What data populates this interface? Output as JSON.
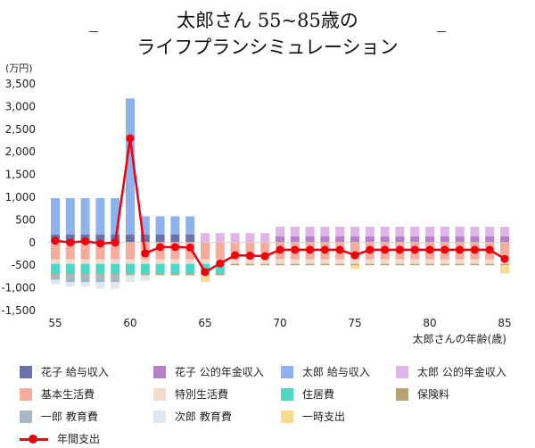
{
  "chart_data": {
    "type": "bar",
    "title_lines": [
      "太郎さん 55~85歳の",
      "ライフプランシミュレーション"
    ],
    "ylabel": "(万円)",
    "xlabel": "太郎さんの年齢(歳)",
    "ylim": [
      -1500,
      3500
    ],
    "yticks": [
      "3,500",
      "3,000",
      "2,500",
      "2,000",
      "1,500",
      "1,000",
      "500",
      "0",
      "-500",
      "-1,000",
      "-1,500"
    ],
    "ytick_values": [
      3500,
      3000,
      2500,
      2000,
      1500,
      1000,
      500,
      0,
      -500,
      -1000,
      -1500
    ],
    "xticks": [
      55,
      60,
      65,
      70,
      75,
      80,
      85
    ],
    "x": [
      55,
      56,
      57,
      58,
      59,
      60,
      61,
      62,
      63,
      64,
      65,
      66,
      67,
      68,
      69,
      70,
      71,
      72,
      73,
      74,
      75,
      76,
      77,
      78,
      79,
      80,
      81,
      82,
      83,
      84,
      85
    ],
    "series": [
      {
        "name": "花子 給与収入",
        "color": "#6b72a8",
        "stack": "income",
        "values": [
          180,
          180,
          180,
          180,
          180,
          180,
          180,
          180,
          180,
          180,
          0,
          0,
          0,
          0,
          0,
          0,
          0,
          0,
          0,
          0,
          0,
          0,
          0,
          0,
          0,
          0,
          0,
          0,
          0,
          0,
          0
        ]
      },
      {
        "name": "花子 公的年金収入",
        "color": "#b77fc8",
        "stack": "income",
        "values": [
          0,
          0,
          0,
          0,
          0,
          0,
          0,
          0,
          0,
          0,
          0,
          0,
          0,
          0,
          0,
          140,
          140,
          140,
          140,
          140,
          140,
          140,
          140,
          140,
          140,
          140,
          140,
          140,
          140,
          140,
          140
        ]
      },
      {
        "name": "太郎 給与収入",
        "color": "#8eb3ec",
        "stack": "income",
        "values": [
          800,
          800,
          800,
          800,
          800,
          3000,
          400,
          400,
          400,
          400,
          0,
          0,
          0,
          0,
          0,
          0,
          0,
          0,
          0,
          0,
          0,
          0,
          0,
          0,
          0,
          0,
          0,
          0,
          0,
          0,
          0
        ]
      },
      {
        "name": "太郎 公的年金収入",
        "color": "#e0b6e9",
        "stack": "income",
        "values": [
          0,
          0,
          0,
          0,
          0,
          0,
          0,
          0,
          0,
          0,
          210,
          210,
          210,
          210,
          210,
          210,
          210,
          210,
          210,
          210,
          210,
          210,
          210,
          210,
          210,
          210,
          210,
          210,
          210,
          210,
          210
        ]
      },
      {
        "name": "基本生活費",
        "color": "#f4ac9c",
        "stack": "expense",
        "values": [
          -370,
          -370,
          -370,
          -370,
          -370,
          -370,
          -370,
          -370,
          -370,
          -370,
          -370,
          -370,
          -370,
          -370,
          -370,
          -370,
          -370,
          -370,
          -370,
          -370,
          -370,
          -370,
          -370,
          -370,
          -370,
          -370,
          -370,
          -370,
          -370,
          -370,
          -370
        ]
      },
      {
        "name": "特別生活費",
        "color": "#f4d9cf",
        "stack": "expense",
        "values": [
          -100,
          -100,
          -100,
          -100,
          -100,
          -100,
          -100,
          -100,
          -100,
          -100,
          -100,
          -100,
          -100,
          -100,
          -100,
          -100,
          -100,
          -100,
          -100,
          -100,
          -100,
          -100,
          -100,
          -100,
          -100,
          -100,
          -100,
          -100,
          -100,
          -100,
          -100
        ]
      },
      {
        "name": "住居費",
        "color": "#4fd6c5",
        "stack": "expense",
        "values": [
          -220,
          -220,
          -220,
          -220,
          -220,
          -220,
          -220,
          -220,
          -220,
          -220,
          -220,
          -220,
          0,
          0,
          0,
          0,
          0,
          0,
          0,
          0,
          0,
          0,
          0,
          0,
          0,
          0,
          0,
          0,
          0,
          0,
          0
        ]
      },
      {
        "name": "保険料",
        "color": "#b7a373",
        "stack": "expense",
        "values": [
          -30,
          -30,
          -30,
          -30,
          -30,
          -30,
          -30,
          -30,
          -30,
          -30,
          -30,
          -30,
          -30,
          -30,
          -30,
          -30,
          -30,
          -30,
          -30,
          -30,
          -30,
          -30,
          -30,
          -30,
          -30,
          -30,
          -30,
          -30,
          -30,
          -30,
          -30
        ]
      },
      {
        "name": "一郎 教育費",
        "color": "#a7b7c6",
        "stack": "expense",
        "values": [
          -100,
          -150,
          -150,
          -150,
          -150,
          0,
          0,
          0,
          0,
          0,
          0,
          0,
          0,
          0,
          0,
          0,
          0,
          0,
          0,
          0,
          0,
          0,
          0,
          0,
          0,
          0,
          0,
          0,
          0,
          0,
          0
        ]
      },
      {
        "name": "次郎 教育費",
        "color": "#dfe8ee",
        "stack": "expense",
        "values": [
          -100,
          -100,
          -100,
          -150,
          -150,
          -150,
          -120,
          0,
          0,
          0,
          0,
          0,
          0,
          0,
          0,
          0,
          0,
          0,
          0,
          0,
          0,
          0,
          0,
          0,
          0,
          0,
          0,
          0,
          0,
          0,
          0
        ]
      },
      {
        "name": "一時支出",
        "color": "#f8db90",
        "stack": "expense",
        "values": [
          0,
          0,
          0,
          0,
          0,
          0,
          0,
          0,
          0,
          0,
          -150,
          0,
          0,
          0,
          0,
          0,
          0,
          0,
          0,
          0,
          -80,
          0,
          0,
          0,
          0,
          0,
          0,
          0,
          0,
          0,
          -180
        ]
      }
    ],
    "line_series": {
      "name": "年間支出",
      "color": "#f0000f",
      "values": [
        40,
        0,
        30,
        -20,
        0,
        2300,
        -240,
        -100,
        -100,
        -110,
        -650,
        -460,
        -280,
        -290,
        -300,
        -160,
        -160,
        -160,
        -160,
        -160,
        -280,
        -160,
        -160,
        -160,
        -160,
        -160,
        -160,
        -160,
        -160,
        -160,
        -360
      ]
    },
    "grid": false,
    "legend_position": "bottom"
  }
}
